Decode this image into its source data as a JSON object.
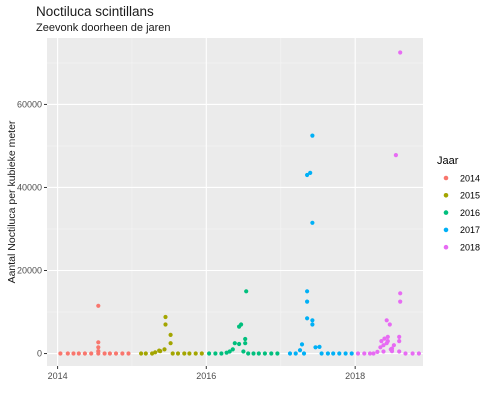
{
  "title": "Noctiluca scintillans",
  "subtitle": "Zeevonk doorheen de jaren",
  "chart_data": {
    "type": "scatter",
    "ylabel": "Aantal Noctiluca per kubieke meter",
    "xlabel": "",
    "xlim": [
      "2013-11-10",
      "2018-11-30"
    ],
    "ylim": [
      -3000,
      76000
    ],
    "x_ticks": [
      "2014",
      "2016",
      "2018"
    ],
    "y_ticks": [
      0,
      20000,
      40000,
      60000
    ],
    "grid": true,
    "legend": {
      "title": "Jaar",
      "position": "right"
    },
    "series": [
      {
        "name": "2014",
        "color": "#F8766D",
        "points": [
          [
            "2014-01-15",
            0
          ],
          [
            "2014-02-20",
            0
          ],
          [
            "2014-03-20",
            0
          ],
          [
            "2014-04-15",
            0
          ],
          [
            "2014-05-15",
            0
          ],
          [
            "2014-06-15",
            0
          ],
          [
            "2014-07-20",
            0
          ],
          [
            "2014-07-20",
            600
          ],
          [
            "2014-07-20",
            1500
          ],
          [
            "2014-07-20",
            2700
          ],
          [
            "2014-07-20",
            11500
          ],
          [
            "2014-08-20",
            0
          ],
          [
            "2014-09-15",
            0
          ],
          [
            "2014-10-15",
            0
          ],
          [
            "2014-11-15",
            0
          ],
          [
            "2014-12-15",
            0
          ]
        ]
      },
      {
        "name": "2015",
        "color": "#A3A500",
        "points": [
          [
            "2015-02-15",
            0
          ],
          [
            "2015-03-10",
            0
          ],
          [
            "2015-04-10",
            0
          ],
          [
            "2015-04-25",
            300
          ],
          [
            "2015-05-15",
            700
          ],
          [
            "2015-05-20",
            600
          ],
          [
            "2015-06-10",
            1000
          ],
          [
            "2015-06-15",
            7000
          ],
          [
            "2015-06-15",
            8800
          ],
          [
            "2015-07-10",
            2500
          ],
          [
            "2015-07-10",
            4500
          ],
          [
            "2015-07-20",
            0
          ],
          [
            "2015-08-15",
            0
          ],
          [
            "2015-09-15",
            0
          ],
          [
            "2015-10-10",
            0
          ],
          [
            "2015-11-10",
            0
          ],
          [
            "2015-12-10",
            0
          ]
        ]
      },
      {
        "name": "2016",
        "color": "#00BF7D",
        "points": [
          [
            "2016-01-15",
            0
          ],
          [
            "2016-02-15",
            0
          ],
          [
            "2016-03-15",
            0
          ],
          [
            "2016-04-10",
            200
          ],
          [
            "2016-04-25",
            500
          ],
          [
            "2016-05-10",
            1000
          ],
          [
            "2016-05-20",
            2500
          ],
          [
            "2016-06-10",
            2300
          ],
          [
            "2016-06-10",
            6500
          ],
          [
            "2016-06-20",
            7000
          ],
          [
            "2016-07-01",
            500
          ],
          [
            "2016-07-10",
            2500
          ],
          [
            "2016-07-10",
            3500
          ],
          [
            "2016-07-15",
            15000
          ],
          [
            "2016-07-25",
            0
          ],
          [
            "2016-08-20",
            0
          ],
          [
            "2016-09-15",
            0
          ],
          [
            "2016-10-15",
            0
          ],
          [
            "2016-11-15",
            0
          ],
          [
            "2016-12-15",
            0
          ]
        ]
      },
      {
        "name": "2017",
        "color": "#00B0F6",
        "points": [
          [
            "2017-02-15",
            0
          ],
          [
            "2017-03-15",
            0
          ],
          [
            "2017-04-05",
            800
          ],
          [
            "2017-04-15",
            2200
          ],
          [
            "2017-04-25",
            0
          ],
          [
            "2017-05-10",
            8500
          ],
          [
            "2017-05-10",
            12500
          ],
          [
            "2017-05-10",
            15000
          ],
          [
            "2017-05-10",
            43000
          ],
          [
            "2017-05-25",
            43500
          ],
          [
            "2017-06-05",
            7000
          ],
          [
            "2017-06-05",
            8000
          ],
          [
            "2017-06-05",
            31500
          ],
          [
            "2017-06-05",
            52500
          ],
          [
            "2017-06-20",
            1500
          ],
          [
            "2017-07-10",
            1600
          ],
          [
            "2017-07-20",
            0
          ],
          [
            "2017-08-20",
            0
          ],
          [
            "2017-09-15",
            0
          ],
          [
            "2017-10-15",
            0
          ],
          [
            "2017-11-15",
            0
          ],
          [
            "2017-12-15",
            0
          ]
        ]
      },
      {
        "name": "2018",
        "color": "#E76BF3",
        "points": [
          [
            "2018-01-15",
            0
          ],
          [
            "2018-02-15",
            0
          ],
          [
            "2018-03-15",
            0
          ],
          [
            "2018-04-01",
            0
          ],
          [
            "2018-04-20",
            400
          ],
          [
            "2018-05-05",
            1500
          ],
          [
            "2018-05-10",
            3000
          ],
          [
            "2018-05-20",
            500
          ],
          [
            "2018-05-20",
            2000
          ],
          [
            "2018-05-25",
            3600
          ],
          [
            "2018-06-05",
            2500
          ],
          [
            "2018-06-05",
            8000
          ],
          [
            "2018-06-10",
            3000
          ],
          [
            "2018-06-10",
            4000
          ],
          [
            "2018-06-20",
            7000
          ],
          [
            "2018-06-25",
            1000
          ],
          [
            "2018-07-01",
            600
          ],
          [
            "2018-07-01",
            1200
          ],
          [
            "2018-07-10",
            2000
          ],
          [
            "2018-07-20",
            47800
          ],
          [
            "2018-08-05",
            500
          ],
          [
            "2018-08-05",
            3000
          ],
          [
            "2018-08-05",
            4000
          ],
          [
            "2018-08-10",
            12500
          ],
          [
            "2018-08-10",
            14500
          ],
          [
            "2018-08-10",
            72500
          ],
          [
            "2018-09-05",
            0
          ],
          [
            "2018-10-10",
            0
          ],
          [
            "2018-11-10",
            0
          ]
        ]
      }
    ]
  }
}
